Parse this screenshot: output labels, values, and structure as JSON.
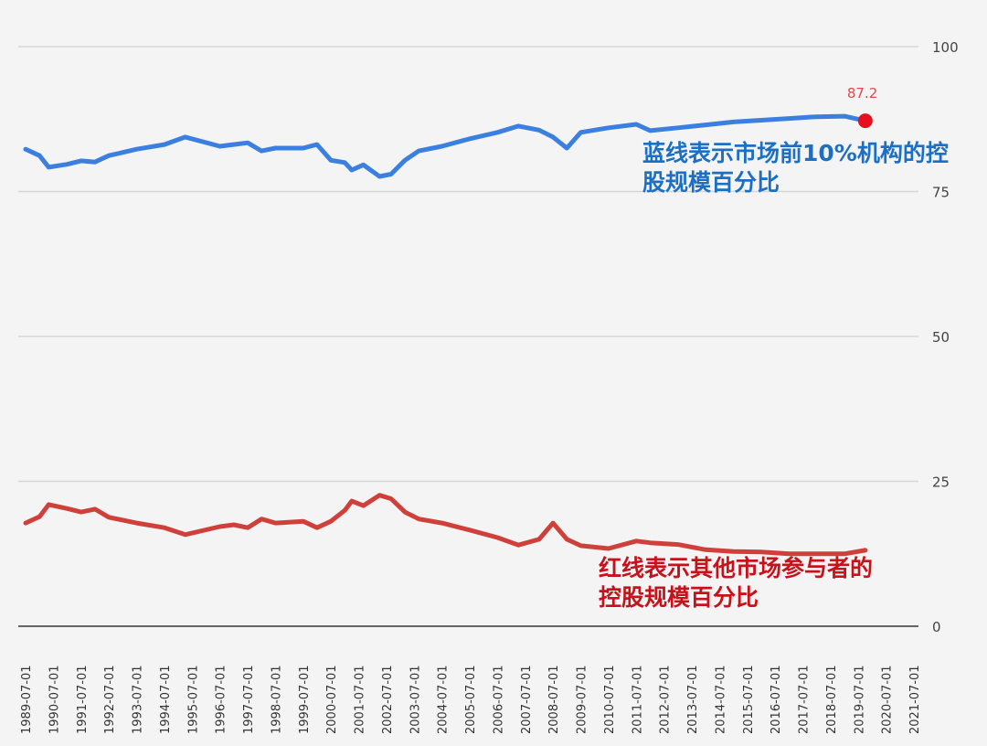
{
  "chart_data": {
    "type": "line",
    "title": "",
    "xlabel": "",
    "ylabel": "",
    "ylim": [
      0,
      100
    ],
    "y_ticks": [
      "0",
      "25",
      "50",
      "75",
      "100"
    ],
    "x_ticks": [
      "1989-07-01",
      "1990-07-01",
      "1991-07-01",
      "1992-07-01",
      "1993-07-01",
      "1994-07-01",
      "1995-07-01",
      "1996-07-01",
      "1997-07-01",
      "1998-07-01",
      "1999-07-01",
      "2000-07-01",
      "2001-07-01",
      "2002-07-01",
      "2003-07-01",
      "2004-07-01",
      "2005-07-01",
      "2006-07-01",
      "2007-07-01",
      "2008-07-01",
      "2009-07-01",
      "2010-07-01",
      "2011-07-01",
      "2012-07-01",
      "2013-07-01",
      "2014-07-01",
      "2015-07-01",
      "2016-07-01",
      "2017-07-01",
      "2018-07-01",
      "2019-07-01",
      "2020-07-01",
      "2021-07-01"
    ],
    "xlim": [
      "1989-07-01",
      "2021-07-01"
    ],
    "grid": true,
    "y_axis_position": "right",
    "series": [
      {
        "color": "#3b7fe0",
        "x": [
          "1989-07",
          "1990-01",
          "1990-05",
          "1991-01",
          "1991-07",
          "1992-01",
          "1992-07",
          "1993-07",
          "1994-07",
          "1995-04",
          "1996-07",
          "1997-01",
          "1997-07",
          "1998-01",
          "1998-07",
          "1999-07",
          "2000-01",
          "2000-07",
          "2001-01",
          "2001-04",
          "2001-09",
          "2002-04",
          "2002-09",
          "2003-03",
          "2003-09",
          "2004-07",
          "2005-07",
          "2006-07",
          "2007-04",
          "2008-01",
          "2008-07",
          "2009-01",
          "2009-07",
          "2010-07",
          "2011-07",
          "2012-01",
          "2013-01",
          "2014-01",
          "2015-01",
          "2016-01",
          "2017-01",
          "2018-01",
          "2019-01",
          "2019-10"
        ],
        "y": [
          82.3,
          81.2,
          79.2,
          79.7,
          80.3,
          80.1,
          81.2,
          82.3,
          83.1,
          84.4,
          82.8,
          83.1,
          83.4,
          82.0,
          82.5,
          82.5,
          83.1,
          80.4,
          80.0,
          78.7,
          79.6,
          77.6,
          78.0,
          80.4,
          82.0,
          82.8,
          84.1,
          85.2,
          86.3,
          85.6,
          84.4,
          82.5,
          85.2,
          86.0,
          86.6,
          85.5,
          86.0,
          86.5,
          87.0,
          87.3,
          87.6,
          87.9,
          88.0,
          87.2
        ]
      },
      {
        "color": "#d0403a",
        "x": [
          "1989-07",
          "1990-01",
          "1990-05",
          "1991-01",
          "1991-07",
          "1992-01",
          "1992-07",
          "1993-07",
          "1994-07",
          "1995-04",
          "1996-07",
          "1997-01",
          "1997-07",
          "1998-01",
          "1998-07",
          "1999-07",
          "2000-01",
          "2000-07",
          "2001-01",
          "2001-04",
          "2001-09",
          "2002-04",
          "2002-09",
          "2003-03",
          "2003-09",
          "2004-07",
          "2005-07",
          "2006-07",
          "2007-04",
          "2008-01",
          "2008-07",
          "2009-01",
          "2009-07",
          "2010-07",
          "2011-07",
          "2012-01",
          "2013-01",
          "2014-01",
          "2015-01",
          "2016-01",
          "2017-01",
          "2018-01",
          "2019-01",
          "2019-10"
        ],
        "y": [
          17.8,
          18.9,
          21.0,
          20.3,
          19.7,
          20.2,
          18.8,
          17.8,
          17.0,
          15.8,
          17.2,
          17.5,
          17.0,
          18.5,
          17.8,
          18.1,
          17.0,
          18.1,
          20.0,
          21.6,
          20.8,
          22.6,
          22.0,
          19.7,
          18.5,
          17.8,
          16.6,
          15.3,
          14.0,
          15.0,
          17.8,
          15.0,
          13.9,
          13.4,
          14.7,
          14.4,
          14.1,
          13.2,
          12.9,
          12.8,
          12.5,
          12.5,
          12.5,
          13.1
        ]
      }
    ],
    "end_marker": {
      "color": "#e8101c",
      "label": "87.2"
    },
    "annotations": [
      {
        "text_line1": "蓝线表示市场前10%机构的控",
        "text_line2": "股规模百分比",
        "color": "#1d6fc4"
      },
      {
        "text_line1": "红线表示其他市场参与者的",
        "text_line2": "控股规模百分比",
        "color": "#c8121b"
      }
    ]
  }
}
